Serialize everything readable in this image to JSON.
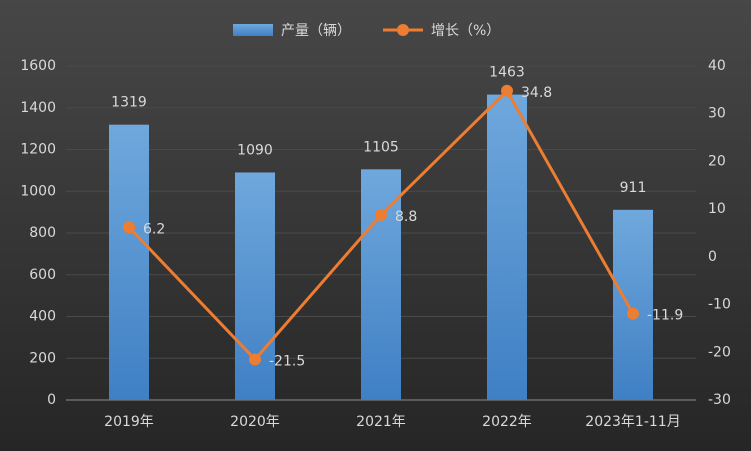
{
  "chart_data": {
    "type": "bar",
    "categories": [
      "2019年",
      "2020年",
      "2021年",
      "2022年",
      "2023年1-11月"
    ],
    "series": [
      {
        "name": "产量（辆）",
        "type": "bar",
        "color": "#5b9bd5",
        "values": [
          1319,
          1090,
          1105,
          1463,
          911
        ]
      },
      {
        "name": "增长（%）",
        "type": "line",
        "axis": "y2",
        "color": "#ed7d31",
        "values": [
          6.2,
          -21.5,
          8.8,
          34.8,
          -11.9
        ]
      }
    ],
    "ylim": [
      0,
      1600
    ],
    "yticks": [
      0,
      200,
      400,
      600,
      800,
      1000,
      1200,
      1400,
      1600
    ],
    "y2lim": [
      -30,
      40
    ],
    "y2ticks": [
      -30,
      -20,
      -10,
      0,
      10,
      20,
      30,
      40
    ],
    "grid": true
  }
}
